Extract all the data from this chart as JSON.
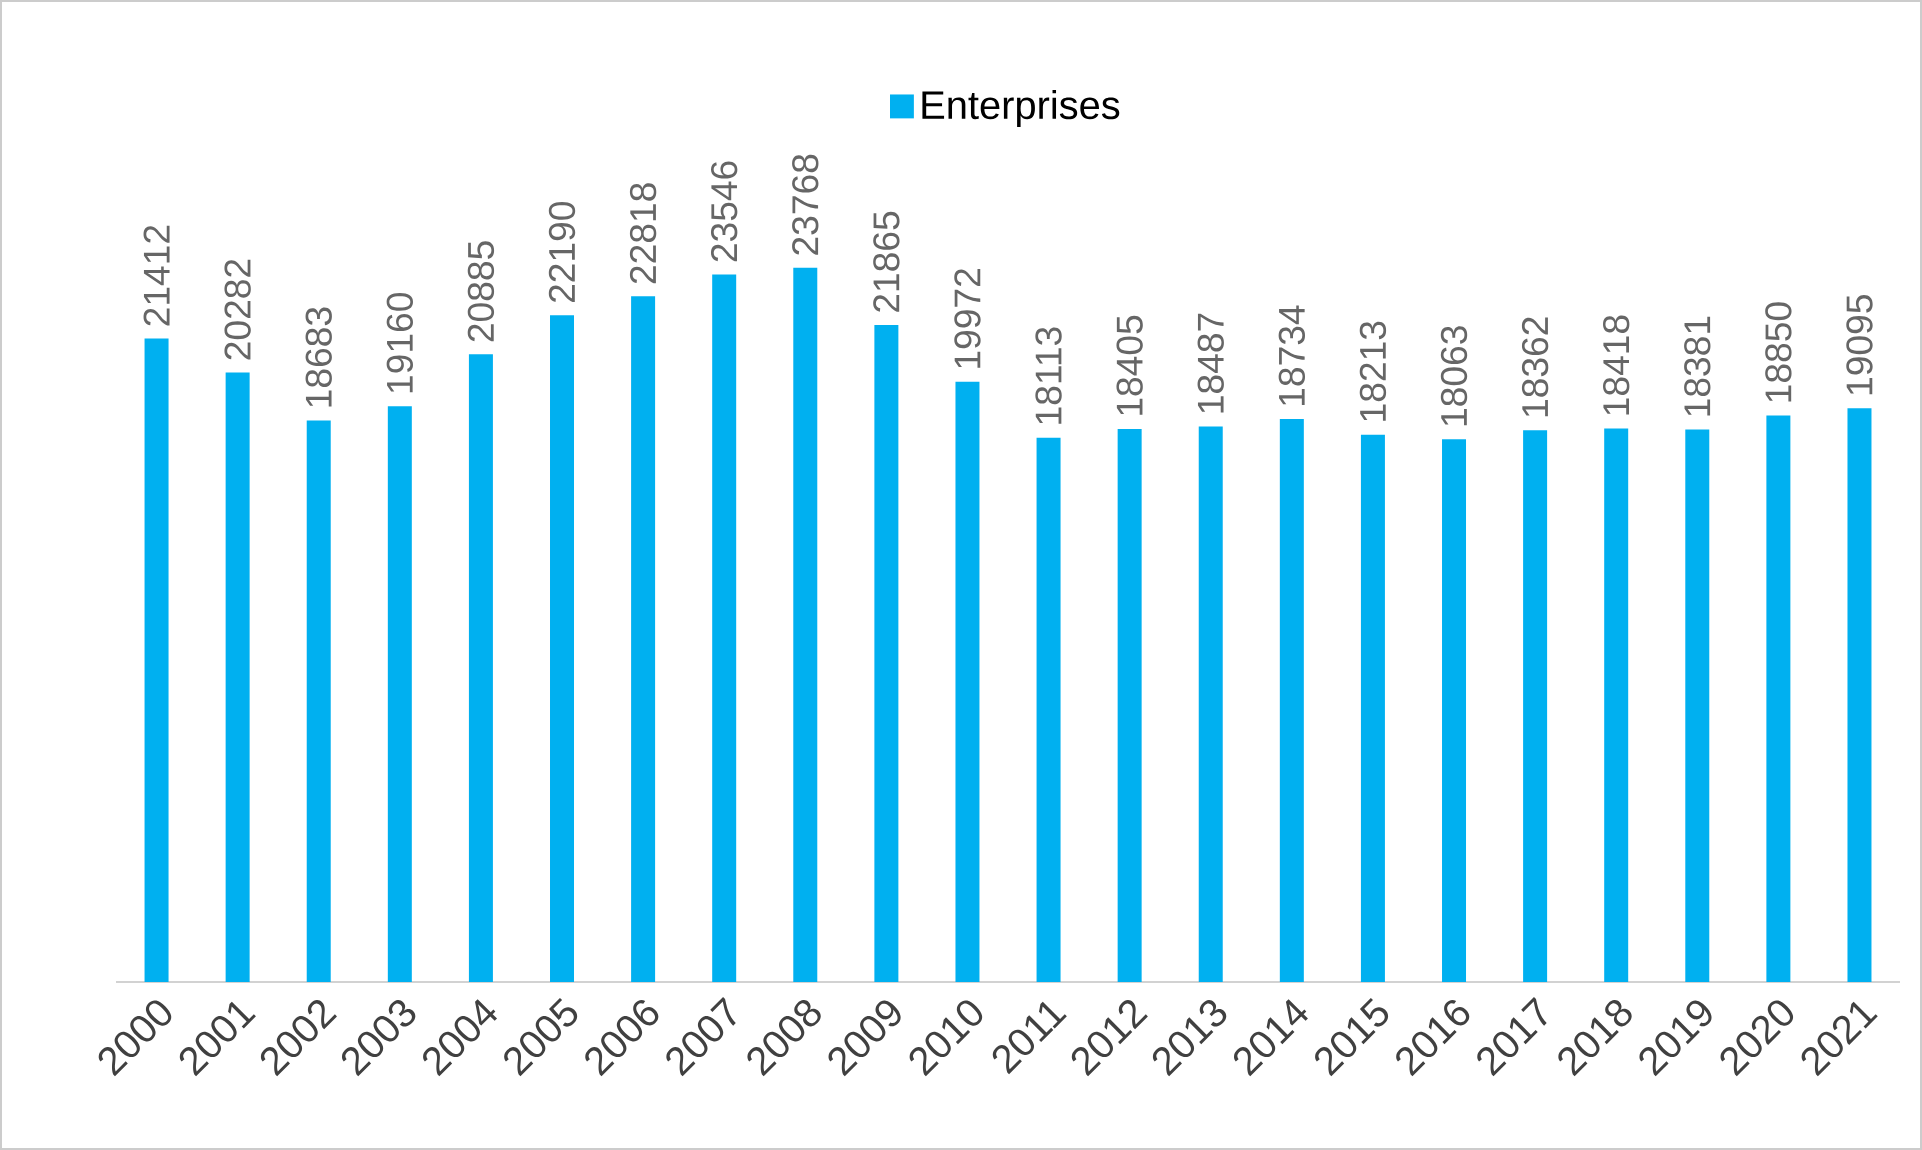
{
  "chart_data": {
    "type": "bar",
    "categories": [
      "2000",
      "2001",
      "2002",
      "2003",
      "2004",
      "2005",
      "2006",
      "2007",
      "2008",
      "2009",
      "2010",
      "2011",
      "2012",
      "2013",
      "2014",
      "2015",
      "2016",
      "2017",
      "2018",
      "2019",
      "2020",
      "2021"
    ],
    "series": [
      {
        "name": "Enterprises",
        "color": "#00b0f0",
        "values": [
          21412,
          20282,
          18683,
          19160,
          20885,
          22190,
          22818,
          23546,
          23768,
          21865,
          19972,
          18113,
          18405,
          18487,
          18734,
          18213,
          18063,
          18362,
          18418,
          18381,
          18850,
          19095
        ]
      }
    ],
    "data_labels": true,
    "legend": "top"
  }
}
